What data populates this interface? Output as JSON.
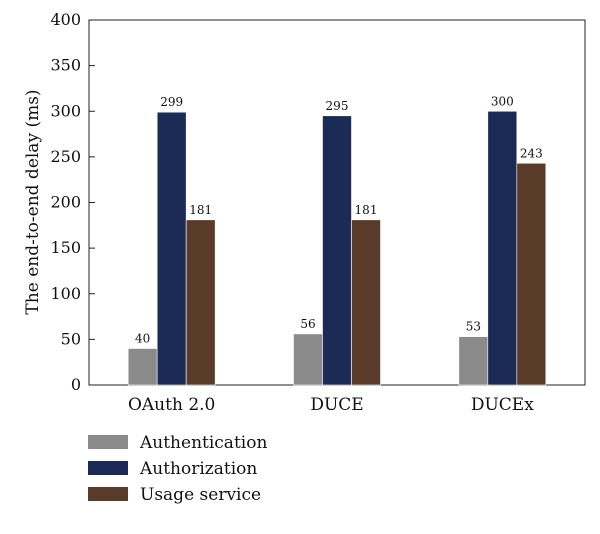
{
  "chart_data": {
    "type": "bar",
    "categories": [
      "OAuth 2.0",
      "DUCE",
      "DUCEx"
    ],
    "series": [
      {
        "name": "Authentication",
        "values": [
          40,
          56,
          53
        ],
        "color": "#8a8a8a"
      },
      {
        "name": "Authorization",
        "values": [
          299,
          295,
          300
        ],
        "color": "#1c2b55"
      },
      {
        "name": "Usage service",
        "values": [
          181,
          181,
          243
        ],
        "color": "#5a3a28"
      }
    ],
    "data_labels": [
      [
        "40",
        "56",
        "53"
      ],
      [
        "299",
        "295",
        "300"
      ],
      [
        "181",
        "181",
        "243"
      ]
    ],
    "title": "",
    "xlabel": "",
    "ylabel": "The end-to-end delay (ms)",
    "ylim": [
      0,
      400
    ],
    "yticks": [
      0,
      50,
      100,
      150,
      200,
      250,
      300,
      350,
      400
    ],
    "grid": false,
    "legend_position": "bottom-left"
  }
}
